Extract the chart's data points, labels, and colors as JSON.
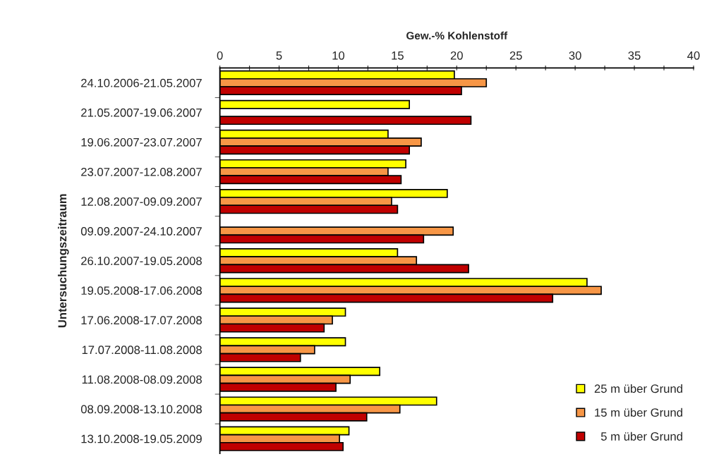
{
  "chart_data": {
    "type": "bar",
    "orientation": "horizontal",
    "xlabel": "Gew.-% Kohlenstoff",
    "ylabel": "Untersuchungszeitraum",
    "categories": [
      "24.10.2006-21.05.2007",
      "21.05.2007-19.06.2007",
      "19.06.2007-23.07.2007",
      "23.07.2007-12.08.2007",
      "12.08.2007-09.09.2007",
      "09.09.2007-24.10.2007",
      "26.10.2007-19.05.2008",
      "19.05.2008-17.06.2008",
      "17.06.2008-17.07.2008",
      "17.07.2008-11.08.2008",
      "11.08.2008-08.09.2008",
      "08.09.2008-13.10.2008",
      "13.10.2008-19.05.2009"
    ],
    "series": [
      {
        "name": "25 m über Grund",
        "color": "#ffff00",
        "values": [
          19.8,
          16.0,
          14.2,
          15.7,
          19.2,
          null,
          15.0,
          31.0,
          10.6,
          10.6,
          13.5,
          18.3,
          10.9
        ]
      },
      {
        "name": "15 m über Grund",
        "color": "#f79646",
        "values": [
          22.5,
          null,
          17.0,
          14.2,
          14.5,
          19.7,
          16.6,
          32.2,
          9.5,
          8.0,
          11.0,
          15.2,
          10.1
        ]
      },
      {
        "name": "  5 m über Grund",
        "color": "#c00000",
        "values": [
          20.4,
          21.2,
          16.0,
          15.3,
          15.0,
          17.2,
          21.0,
          28.1,
          8.8,
          6.8,
          9.8,
          12.4,
          10.4
        ]
      }
    ],
    "xlim": [
      0,
      40
    ],
    "xticks": [
      0,
      {
        "value": 2.5,
        "label": null
      },
      5,
      {
        "value": 7.5,
        "label": null
      },
      10,
      {
        "value": 12.5,
        "label": null
      },
      15,
      {
        "value": 17.5,
        "label": null
      },
      20,
      {
        "value": 22.5,
        "label": null
      },
      25,
      {
        "value": 27.5,
        "label": null
      },
      30,
      {
        "value": 32.5,
        "label": null
      },
      35,
      {
        "value": 37.5,
        "label": null
      },
      40
    ],
    "grid": false,
    "legend": "bottom right"
  }
}
